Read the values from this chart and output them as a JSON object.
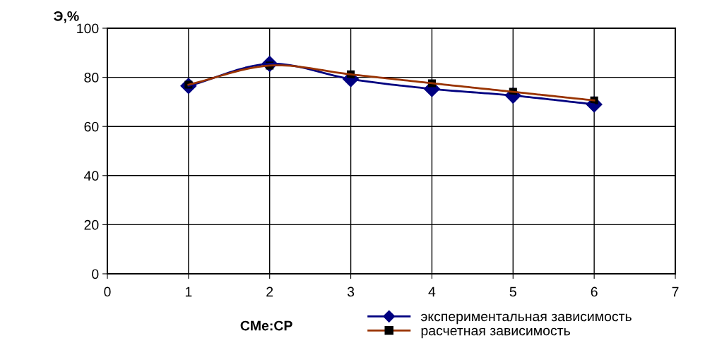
{
  "chart_data": {
    "type": "line",
    "xlabel": "CMe:CP",
    "ylabel": "Э,%",
    "x": [
      1,
      2,
      3,
      4,
      5,
      6
    ],
    "series": [
      {
        "name": "экспериментальная зависимость",
        "color": "#000080",
        "marker": "diamond",
        "values": [
          76.5,
          85.5,
          79.3,
          75.3,
          72.6,
          69.0
        ]
      },
      {
        "name": "расчетная зависимость",
        "color": "#993300",
        "marker": "square",
        "values": [
          77.0,
          84.8,
          81.2,
          77.6,
          74.1,
          70.6
        ]
      }
    ],
    "xlim": [
      0,
      7
    ],
    "xticks": [
      0,
      1,
      2,
      3,
      4,
      5,
      6,
      7
    ],
    "ylim": [
      0,
      100
    ],
    "yticks": [
      0,
      20,
      40,
      60,
      80,
      100
    ],
    "grid": true,
    "legend": "bottom right"
  }
}
